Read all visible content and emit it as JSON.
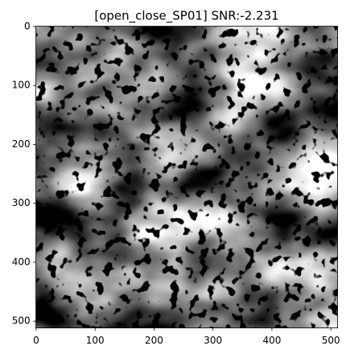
{
  "chart_data": {
    "type": "image",
    "title": "[open_close_SP01] SNR:-2.231",
    "xlim": [
      -0.5,
      511.5
    ],
    "ylim": [
      511.5,
      -0.5
    ],
    "xticks": [
      0,
      100,
      200,
      300,
      400,
      500
    ],
    "yticks": [
      0,
      100,
      200,
      300,
      400,
      500
    ]
  }
}
